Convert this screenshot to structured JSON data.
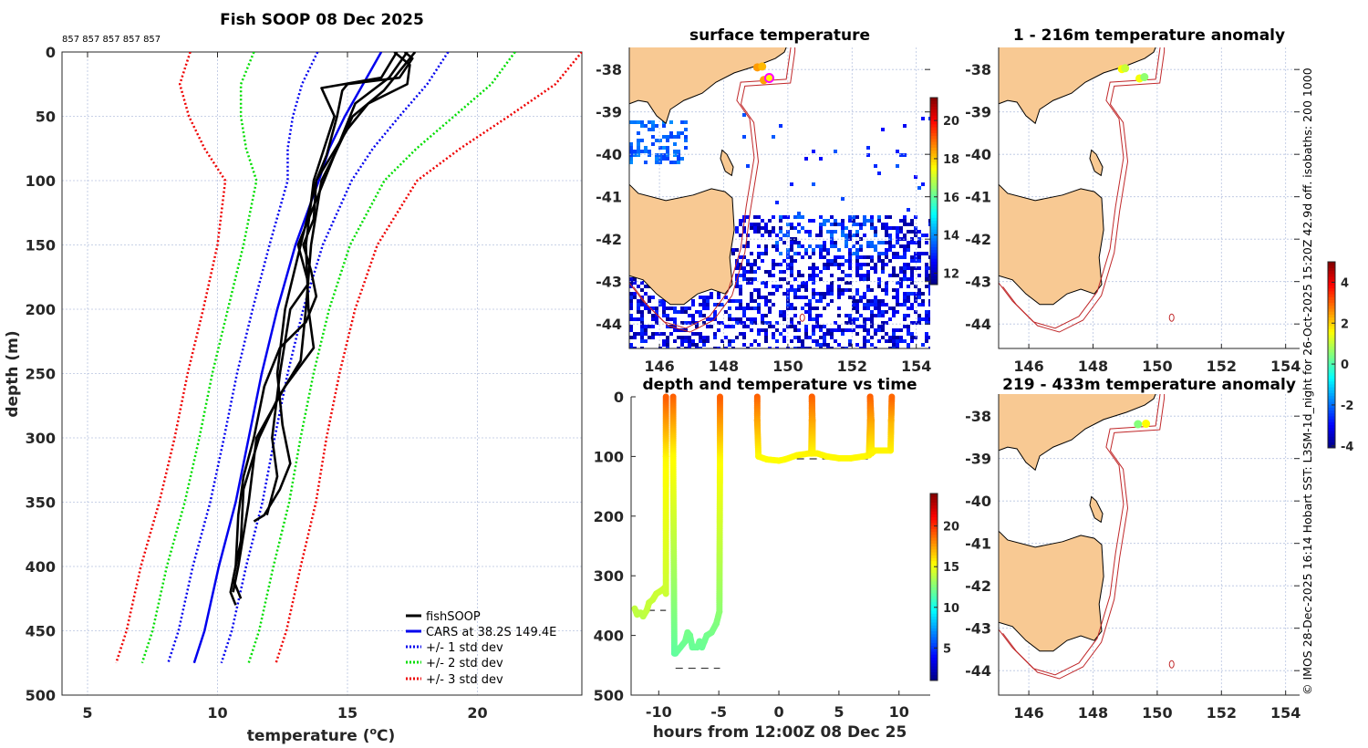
{
  "header": {
    "profile_ids": "857 857 857 857 857",
    "credit": "© IMOS 28-Dec-2025 16:14 Hobart SST: L3SM-1d_night for 26-Oct-2025 15:20Z 42.9d off. isobaths: 200  1000"
  },
  "colors": {
    "land": "#f8c993",
    "isobath": "#c0282a",
    "cars": "#0000ee",
    "std1": "#0000ee",
    "std2": "#00dd00",
    "std3": "#ee0000",
    "profile": "#000000"
  },
  "chart_data": [
    {
      "type": "line",
      "id": "profile",
      "title": "Fish SOOP 08 Dec 2025",
      "xlabel_pre": "temperature (",
      "xlabel_sup": "o",
      "xlabel_post": "C)",
      "ylabel": "depth (m)",
      "xlim": [
        4,
        24
      ],
      "ylim": [
        0,
        500
      ],
      "xticks": [
        5,
        10,
        15,
        20
      ],
      "yticks": [
        0,
        50,
        100,
        150,
        200,
        250,
        300,
        350,
        400,
        450,
        500
      ],
      "grid": true,
      "legend_position": "bottom-right",
      "legend": [
        "fishSOOP",
        "CARS at 38.2S 149.4E",
        "+/- 1 std dev",
        "+/- 2 std dev",
        "+/- 3 std dev"
      ],
      "cars": {
        "depth": [
          0,
          25,
          50,
          75,
          100,
          150,
          200,
          250,
          300,
          350,
          400,
          450,
          475
        ],
        "temp": [
          16.3,
          15.6,
          14.9,
          14.3,
          13.9,
          13.0,
          12.3,
          11.7,
          11.2,
          10.7,
          10.05,
          9.5,
          9.1
        ],
        "std": [
          2.45,
          2.35,
          2.0,
          1.6,
          1.2,
          1.0,
          0.95,
          0.95,
          0.95,
          0.98,
          1.0,
          1.0,
          1.0
        ]
      },
      "profiles": [
        [
          [
            0,
            17.2
          ],
          [
            5,
            17.5
          ],
          [
            20,
            17.0
          ],
          [
            25,
            15.0
          ],
          [
            30,
            14.8
          ],
          [
            50,
            14.6
          ],
          [
            80,
            14.2
          ],
          [
            100,
            13.8
          ],
          [
            130,
            13.7
          ],
          [
            150,
            13.3
          ],
          [
            170,
            13.6
          ],
          [
            190,
            13.8
          ],
          [
            210,
            13.4
          ],
          [
            230,
            12.4
          ],
          [
            260,
            11.8
          ],
          [
            300,
            11.4
          ],
          [
            330,
            11.0
          ],
          [
            360,
            10.8
          ],
          [
            400,
            10.7
          ],
          [
            420,
            10.5
          ],
          [
            430,
            10.7
          ]
        ],
        [
          [
            0,
            16.8
          ],
          [
            10,
            17.4
          ],
          [
            25,
            17.3
          ],
          [
            40,
            15.8
          ],
          [
            60,
            15.0
          ],
          [
            100,
            13.8
          ],
          [
            150,
            13.2
          ],
          [
            200,
            12.6
          ],
          [
            250,
            12.3
          ],
          [
            290,
            12.5
          ],
          [
            320,
            12.8
          ],
          [
            340,
            12.4
          ],
          [
            360,
            11.8
          ],
          [
            365,
            11.4
          ]
        ],
        [
          [
            0,
            17.6
          ],
          [
            15,
            17.0
          ],
          [
            30,
            16.4
          ],
          [
            50,
            15.2
          ],
          [
            80,
            14.5
          ],
          [
            100,
            14.0
          ],
          [
            150,
            13.6
          ],
          [
            200,
            13.4
          ],
          [
            240,
            13.2
          ],
          [
            270,
            12.3
          ],
          [
            300,
            11.6
          ],
          [
            340,
            11.0
          ],
          [
            380,
            10.9
          ],
          [
            410,
            10.6
          ],
          [
            425,
            10.9
          ]
        ],
        [
          [
            0,
            16.9
          ],
          [
            20,
            16.3
          ],
          [
            28,
            14.0
          ],
          [
            50,
            14.5
          ],
          [
            100,
            13.7
          ],
          [
            150,
            13.4
          ],
          [
            200,
            13.5
          ],
          [
            230,
            13.7
          ],
          [
            260,
            12.6
          ],
          [
            300,
            11.5
          ],
          [
            350,
            11.2
          ],
          [
            400,
            10.8
          ],
          [
            420,
            10.6
          ]
        ],
        [
          [
            0,
            17.3
          ],
          [
            20,
            16.6
          ],
          [
            40,
            15.3
          ],
          [
            70,
            14.7
          ],
          [
            100,
            14.1
          ],
          [
            150,
            13.1
          ],
          [
            180,
            13.5
          ],
          [
            200,
            12.8
          ],
          [
            250,
            12.4
          ],
          [
            300,
            12.1
          ],
          [
            330,
            12.3
          ],
          [
            360,
            11.9
          ]
        ]
      ]
    },
    {
      "type": "scatter",
      "id": "timeseries",
      "title": "depth and temperature vs time",
      "xlabel": "hours from 12:00Z 08 Dec 25",
      "xlim": [
        -12.3,
        12.6
      ],
      "ylim": [
        0,
        500
      ],
      "xticks": [
        -10,
        -5,
        0,
        5,
        10
      ],
      "yticks": [
        0,
        100,
        200,
        300,
        400,
        500
      ],
      "colorbar": {
        "range": [
          1,
          24
        ],
        "ticks": [
          5,
          10,
          15,
          20
        ]
      },
      "segments": [
        [
          [
            -12.0,
            355,
            14.0
          ],
          [
            -11.8,
            365,
            13.9
          ],
          [
            -11.5,
            362,
            13.9
          ],
          [
            -11.3,
            368,
            13.8
          ],
          [
            -11.0,
            358,
            14.0
          ],
          [
            -10.8,
            345,
            14.1
          ],
          [
            -10.5,
            340,
            14.1
          ],
          [
            -10.2,
            330,
            14.2
          ],
          [
            -9.8,
            325,
            14.2
          ],
          [
            -9.5,
            320,
            14.3
          ],
          [
            -9.4,
            330,
            14.2
          ],
          [
            -9.4,
            100,
            15.5
          ],
          [
            -9.4,
            0,
            19.0
          ]
        ],
        [
          [
            -8.8,
            0,
            19.0
          ],
          [
            -8.8,
            100,
            15.5
          ],
          [
            -8.7,
            430,
            11.8
          ],
          [
            -8.6,
            430,
            11.8
          ],
          [
            -8.2,
            420,
            12.0
          ],
          [
            -7.8,
            410,
            12.1
          ],
          [
            -7.6,
            395,
            12.3
          ],
          [
            -7.4,
            400,
            12.2
          ],
          [
            -7.2,
            420,
            12.0
          ],
          [
            -6.8,
            420,
            12.0
          ],
          [
            -6.6,
            410,
            12.1
          ],
          [
            -6.4,
            420,
            12.0
          ],
          [
            -6.2,
            410,
            12.1
          ],
          [
            -6.0,
            400,
            12.2
          ],
          [
            -5.6,
            395,
            12.3
          ],
          [
            -5.2,
            380,
            12.5
          ],
          [
            -4.95,
            360,
            12.8
          ],
          [
            -4.9,
            100,
            15.5
          ],
          [
            -4.9,
            0,
            19.0
          ]
        ],
        [
          [
            -1.8,
            0,
            19.0
          ],
          [
            -1.8,
            40,
            17.5
          ],
          [
            -1.7,
            100,
            15.5
          ],
          [
            -1.0,
            105,
            15.4
          ],
          [
            0,
            107,
            15.4
          ],
          [
            0.5,
            105,
            15.4
          ],
          [
            1.5,
            98,
            15.5
          ],
          [
            2.5,
            95,
            15.6
          ],
          [
            2.7,
            95,
            15.6
          ],
          [
            2.75,
            40,
            17.5
          ],
          [
            2.75,
            0,
            19.0
          ],
          [
            2.8,
            40,
            17.5
          ],
          [
            2.8,
            95,
            15.6
          ],
          [
            3.2,
            95,
            15.6
          ],
          [
            4,
            100,
            15.5
          ],
          [
            5,
            103,
            15.5
          ],
          [
            6,
            103,
            15.5
          ],
          [
            7,
            100,
            15.5
          ],
          [
            7.5,
            98,
            15.5
          ],
          [
            7.6,
            40,
            17.5
          ],
          [
            7.6,
            0,
            19.0
          ],
          [
            7.7,
            40,
            17.5
          ],
          [
            7.7,
            95,
            15.6
          ],
          [
            8,
            90,
            15.6
          ],
          [
            9.3,
            90,
            15.6
          ],
          [
            9.35,
            40,
            17.0
          ],
          [
            9.4,
            0,
            18.8
          ]
        ]
      ],
      "bottom_depth": [
        [
          -12.0,
          -9.4,
          358
        ],
        [
          -8.6,
          -4.9,
          455
        ],
        [
          -1.7,
          7.5,
          104
        ],
        [
          7.6,
          9.2,
          93
        ]
      ]
    },
    {
      "type": "heatmap",
      "id": "sst_map",
      "title": "surface temperature",
      "lon_ticks": [
        146,
        148,
        150,
        152,
        154
      ],
      "lat_ticks": [
        -38,
        -39,
        -40,
        -41,
        -42,
        -43,
        -44
      ],
      "lon_range": [
        145.06,
        154.4
      ],
      "lat_range": [
        -44.57,
        -37.48
      ],
      "colorbar": {
        "range": [
          11.4,
          21.2
        ],
        "ticks": [
          12,
          14,
          16,
          18,
          20
        ]
      },
      "stations": [
        [
          149.05,
          -37.95,
          18.5
        ],
        [
          149.2,
          -37.93,
          18.2
        ],
        [
          149.25,
          -38.25,
          18.4
        ],
        [
          149.42,
          -38.2,
          17.6
        ]
      ]
    },
    {
      "type": "heatmap",
      "id": "anom_upper",
      "title": "1 - 216m temperature anomaly",
      "lon_ticks": [
        146,
        148,
        150,
        152,
        154
      ],
      "lat_ticks": [
        -38,
        -39,
        -40,
        -41,
        -42,
        -43,
        -44
      ],
      "colorbar": {
        "range": [
          -4.1,
          5.0
        ],
        "ticks": [
          -4,
          -2,
          0,
          2,
          4
        ]
      },
      "stations": [
        [
          148.9,
          -37.99,
          1.6
        ],
        [
          149.0,
          -37.97,
          1.1
        ],
        [
          149.45,
          -38.21,
          1.5
        ],
        [
          149.6,
          -38.18,
          0.6
        ]
      ]
    },
    {
      "type": "heatmap",
      "id": "anom_lower",
      "title": "219 - 433m temperature anomaly",
      "lon_ticks": [
        146,
        148,
        150,
        152,
        154
      ],
      "lat_ticks": [
        -38,
        -39,
        -40,
        -41,
        -42,
        -43,
        -44
      ],
      "stations": [
        [
          149.4,
          -38.19,
          0.5
        ],
        [
          149.65,
          -38.18,
          1.6
        ]
      ]
    }
  ]
}
